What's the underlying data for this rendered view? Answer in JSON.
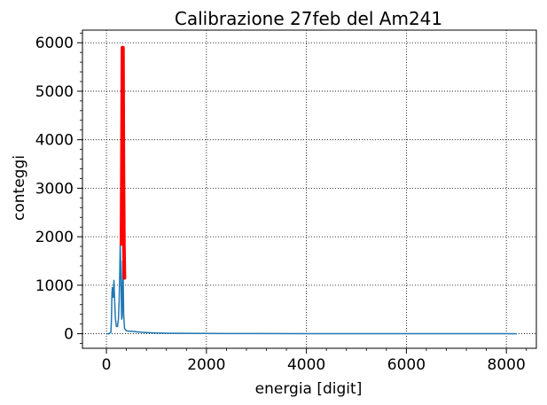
{
  "chart_data": {
    "type": "line",
    "title": "Calibrazione 27feb del Am241",
    "xlabel": "energia [digit]",
    "ylabel": "conteggi",
    "xlim": [
      -480,
      8600
    ],
    "ylim": [
      -300,
      6260
    ],
    "xticks": [
      0,
      2000,
      4000,
      6000,
      8000
    ],
    "yticks": [
      0,
      1000,
      2000,
      3000,
      4000,
      5000,
      6000
    ],
    "grid": true,
    "colors": {
      "spectrum": "#1f77b4",
      "fit": "#ff0000"
    },
    "series": [
      {
        "role": "spectrum",
        "x": [
          0,
          50,
          90,
          100,
          110,
          120,
          135,
          150,
          165,
          180,
          200,
          220,
          240,
          255,
          265,
          275,
          285,
          295,
          300,
          305,
          315,
          325,
          335,
          345,
          360,
          380,
          400,
          450,
          500,
          600,
          700,
          800,
          900,
          1000,
          1200,
          1500,
          2000,
          3000,
          4000,
          5000,
          6000,
          7000,
          8000,
          8200
        ],
        "y": [
          0,
          0,
          30,
          300,
          850,
          950,
          750,
          1100,
          650,
          300,
          150,
          150,
          300,
          700,
          1200,
          1850,
          1500,
          900,
          450,
          300,
          350,
          1500,
          1100,
          400,
          120,
          80,
          60,
          50,
          50,
          40,
          30,
          25,
          20,
          15,
          10,
          8,
          5,
          3,
          2,
          2,
          1,
          1,
          1,
          0
        ]
      },
      {
        "role": "fit",
        "x": [
          300,
          310,
          320,
          330,
          340,
          350,
          360
        ],
        "y": [
          1850,
          3500,
          5900,
          5900,
          3500,
          1800,
          1150
        ]
      }
    ]
  }
}
